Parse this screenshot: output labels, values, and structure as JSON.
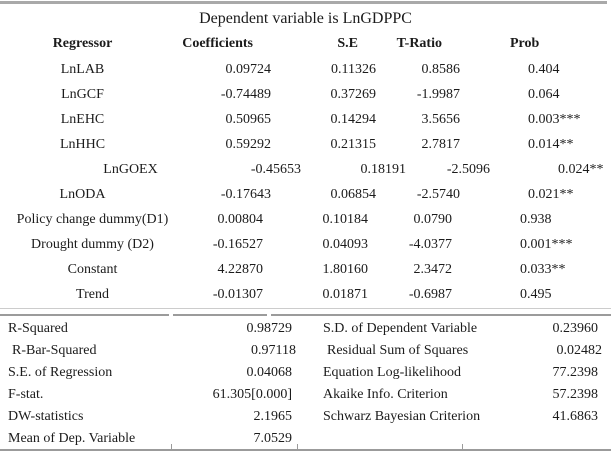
{
  "title": "Dependent variable is LnGDPPC",
  "table": {
    "headers": {
      "regressor": "Regressor",
      "coefficients": "Coefficients",
      "se": "S.E",
      "t_ratio": "T-Ratio",
      "prob": "Prob"
    },
    "rows": [
      {
        "regressor": "LnLAB",
        "coefficient": "0.09724",
        "se": "0.11326",
        "t_ratio": "0.8586",
        "prob": "0.404"
      },
      {
        "regressor": "LnGCF",
        "coefficient": "-0.74489",
        "se": "0.37269",
        "t_ratio": "-1.9987",
        "prob": "0.064"
      },
      {
        "regressor": "LnEHC",
        "coefficient": "0.50965",
        "se": "0.14294",
        "t_ratio": "3.5656",
        "prob": "0.003***"
      },
      {
        "regressor": "LnHHC",
        "coefficient": "0.59292",
        "se": "0.21315",
        "t_ratio": "2.7817",
        "prob": "0.014**"
      },
      {
        "regressor": "LnGOEX",
        "coefficient": "-0.45653",
        "se": "0.18191",
        "t_ratio": "-2.5096",
        "prob": "0.024**"
      },
      {
        "regressor": "LnODA",
        "coefficient": "-0.17643",
        "se": "0.06854",
        "t_ratio": "-2.5740",
        "prob": "0.021**"
      },
      {
        "regressor": "Policy change dummy(D1)",
        "coefficient": "0.00804",
        "se": "0.10184",
        "t_ratio": "0.0790",
        "prob": "0.938"
      },
      {
        "regressor": "Drought dummy (D2)",
        "coefficient": "-0.16527",
        "se": "0.04093",
        "t_ratio": "-4.0377",
        "prob": "0.001***"
      },
      {
        "regressor": "Constant",
        "coefficient": "4.22870",
        "se": "1.80160",
        "t_ratio": "2.3472",
        "prob": "0.033**"
      },
      {
        "regressor": "Trend",
        "coefficient": "-0.01307",
        "se": "0.01871",
        "t_ratio": "-0.6987",
        "prob": "0.495"
      }
    ]
  },
  "stats": {
    "rows": [
      {
        "left_label": "R-Squared",
        "left_value": "0.98729",
        "right_label": "S.D. of Dependent Variable",
        "right_value": "0.23960"
      },
      {
        "left_label": "R-Bar-Squared",
        "left_value": "0.97118",
        "right_label": "Residual Sum of Squares",
        "right_value": "0.02482"
      },
      {
        "left_label": "S.E. of Regression",
        "left_value": "0.04068",
        "right_label": "Equation Log-likelihood",
        "right_value": "77.2398"
      },
      {
        "left_label": "F-stat.",
        "left_value": "61.305[0.000]",
        "right_label": "Akaike Info. Criterion",
        "right_value": "57.2398"
      },
      {
        "left_label": "DW-statistics",
        "left_value": "2.1965",
        "right_label": "Schwarz Bayesian Criterion",
        "right_value": "41.6863"
      },
      {
        "left_label": "Mean of Dep. Variable",
        "left_value": "7.0529",
        "right_label": "",
        "right_value": ""
      }
    ]
  },
  "colors": {
    "rule_gray": "#9b9b9b",
    "top_bar_gray": "#a9a9a9",
    "text": "#1b1b1b"
  }
}
